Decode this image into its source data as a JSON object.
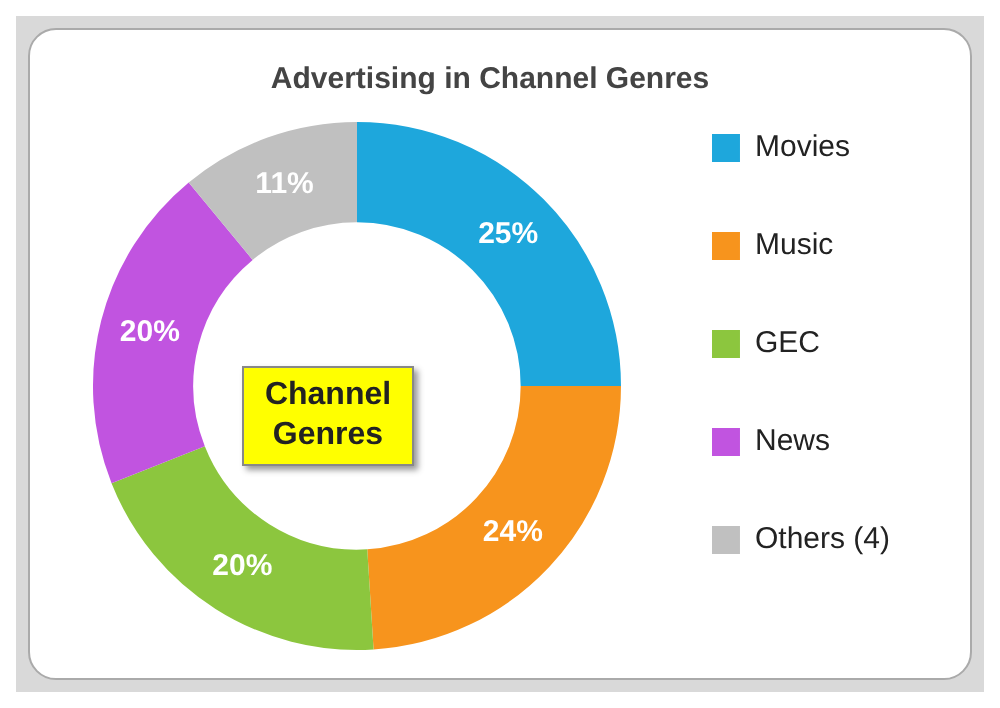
{
  "chart_data": {
    "type": "donut",
    "title": "Advertising in Channel Genres",
    "categories": [
      "Movies",
      "Music",
      "GEC",
      "News",
      "Others (4)"
    ],
    "values": [
      25,
      24,
      20,
      20,
      11
    ],
    "colors": [
      "#1ea7dc",
      "#f7941d",
      "#8cc63e",
      "#c154e0",
      "#c0c0c0"
    ],
    "value_labels": [
      "25%",
      "24%",
      "20%",
      "20%",
      "11%"
    ],
    "annotations": [
      "Channel Genres"
    ],
    "legend": "right"
  }
}
